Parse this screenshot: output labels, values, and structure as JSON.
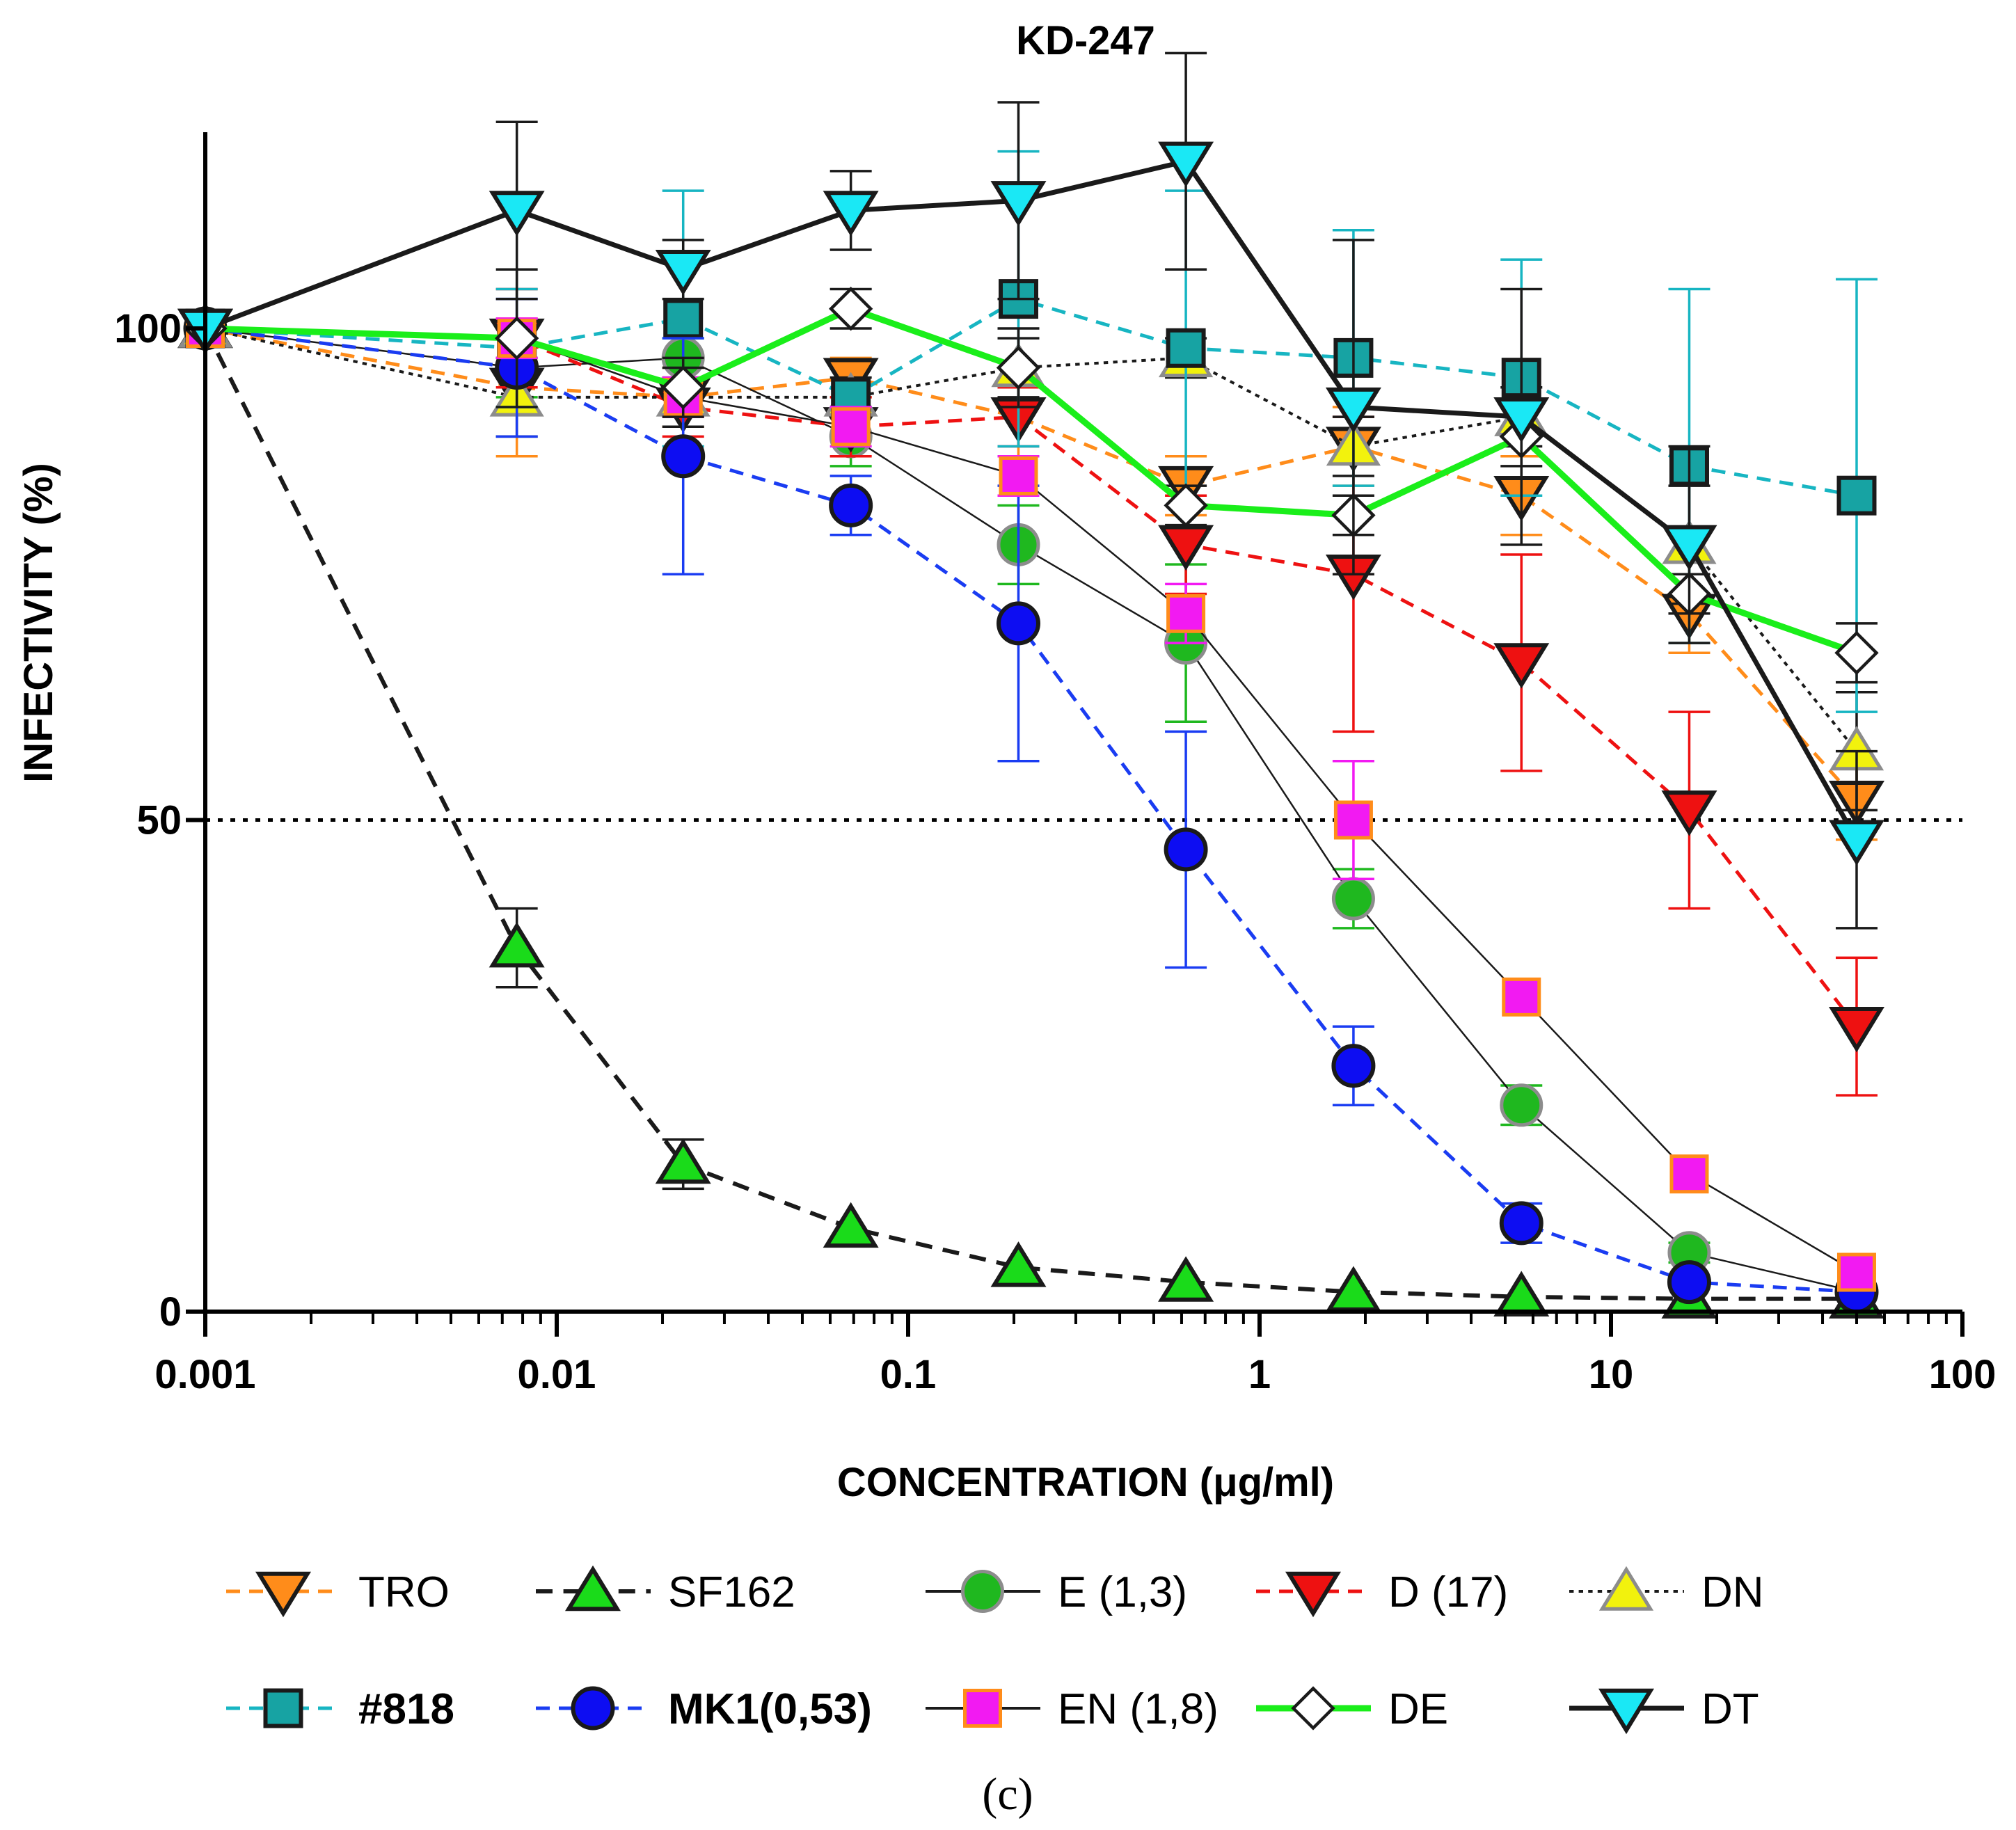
{
  "chart_data": {
    "type": "line",
    "title": "KD-247",
    "xlabel": "CONCENTRATION (μg/ml)",
    "ylabel": "INFECTIVITY (%)",
    "xscale": "log",
    "xlim": [
      0.001,
      100
    ],
    "ylim": [
      0,
      120
    ],
    "xticks": [
      0.001,
      0.01,
      0.1,
      1,
      10,
      100
    ],
    "xtick_labels": [
      "0.001",
      "0.01",
      "0.1",
      "1",
      "10",
      "100"
    ],
    "yticks": [
      0,
      50,
      100
    ],
    "ytick_labels": [
      "0",
      "50",
      "100"
    ],
    "reference_line": {
      "y": 50,
      "style": "dotted"
    },
    "panel_label": "(c)",
    "legend_position": "bottom",
    "x": [
      0.001,
      0.0077,
      0.0229,
      0.0687,
      0.206,
      0.617,
      1.85,
      5.56,
      16.7,
      50
    ],
    "series": [
      {
        "name": "TRO",
        "marker": "triangle-down",
        "color": "#ff8c1a",
        "stroke": "#1a1a1a",
        "line": "dashed",
        "line_color": "#ff8c1a",
        "line_width": 5,
        "values": [
          100,
          94,
          93,
          95,
          91,
          84,
          88,
          83,
          71,
          52
        ],
        "err": [
          0,
          7,
          3,
          2,
          4,
          3,
          4,
          4,
          4,
          4
        ]
      },
      {
        "name": "SF162",
        "marker": "triangle-up",
        "color": "#1adb1a",
        "stroke": "#1a1a1a",
        "line": "dashed",
        "line_color": "#1a1a1a",
        "line_width": 6,
        "values": [
          100,
          37,
          15,
          8.5,
          4.5,
          3,
          2,
          1.5,
          1.3,
          1.3
        ],
        "err": [
          0,
          4,
          2.5,
          0,
          0,
          0,
          0,
          0,
          0,
          0
        ]
      },
      {
        "name": "E (1,3)",
        "marker": "circle",
        "color": "#1fb81f",
        "stroke": "#8c8c8c",
        "line": "solid",
        "line_color": "#1a1a1a",
        "line_width": 2.5,
        "values": [
          100,
          96,
          97,
          89,
          78,
          68,
          42,
          21,
          6,
          2
        ],
        "err": [
          0,
          3,
          2,
          3,
          4,
          8,
          3,
          2,
          1,
          0
        ]
      },
      {
        "name": "D (17)",
        "marker": "triangle-down",
        "color": "#ee1111",
        "stroke": "#1a1a1a",
        "line": "dashed",
        "line_color": "#ee1111",
        "line_width": 5,
        "values": [
          100,
          99,
          92,
          90,
          91,
          78,
          75,
          66,
          51,
          29
        ],
        "err": [
          0,
          5,
          3,
          3,
          3,
          5,
          16,
          11,
          10,
          7
        ]
      },
      {
        "name": "DN",
        "marker": "triangle-up",
        "color": "#f2f20d",
        "stroke": "#8c8c8c",
        "line": "dotted",
        "line_color": "#1a1a1a",
        "line_width": 4,
        "values": [
          100,
          93,
          93,
          93,
          96,
          97,
          88,
          91,
          78,
          57
        ],
        "err": [
          0,
          4,
          3,
          2,
          3,
          2,
          3,
          3,
          6,
          6
        ]
      },
      {
        "name": "#818",
        "marker": "square",
        "color": "#17a3a3",
        "stroke": "#1a1a1a",
        "line": "dashed",
        "line_color": "#17b5c2",
        "line_width": 5,
        "values": [
          100,
          98,
          101,
          93,
          103,
          98,
          97,
          95,
          86,
          83
        ],
        "err": [
          0,
          6,
          13,
          0,
          15,
          16,
          13,
          12,
          18,
          22
        ]
      },
      {
        "name": "MK1(0,53)",
        "marker": "circle",
        "color": "#0d0df2",
        "stroke": "#1a1a1a",
        "line": "dashed",
        "line_color": "#1a3cf2",
        "line_width": 5,
        "values": [
          100,
          96,
          87,
          82,
          70,
          47,
          25,
          9,
          3,
          2
        ],
        "err": [
          0,
          7,
          12,
          3,
          14,
          12,
          4,
          2,
          0,
          0
        ]
      },
      {
        "name": "EN (1,8)",
        "marker": "square",
        "color": "#f21af2",
        "stroke": "#ff8c1a",
        "line": "solid",
        "line_color": "#1a1a1a",
        "line_width": 2.5,
        "values": [
          100,
          99,
          93,
          90,
          85,
          71,
          50,
          32,
          14,
          4
        ],
        "err": [
          0,
          2,
          2,
          2,
          2,
          3,
          6,
          0,
          0,
          0
        ]
      },
      {
        "name": "DE",
        "marker": "diamond",
        "color": "#ffffff",
        "stroke": "#1a1a1a",
        "line": "solid",
        "line_color": "#1aee1a",
        "line_width": 9,
        "values": [
          100,
          99,
          94,
          102,
          96,
          82,
          81,
          89,
          73,
          67
        ],
        "err": [
          0,
          7,
          3,
          2,
          4,
          2,
          2,
          3,
          2,
          3
        ]
      },
      {
        "name": "DT",
        "marker": "triangle-down",
        "color": "#1ae8f5",
        "stroke": "#1a1a1a",
        "line": "solid",
        "line_color": "#1a1a1a",
        "line_width": 7,
        "values": [
          100,
          112,
          106,
          112,
          113,
          117,
          92,
          91,
          78,
          48
        ],
        "err": [
          0,
          9,
          3,
          4,
          10,
          11,
          17,
          13,
          10,
          9
        ]
      }
    ]
  }
}
